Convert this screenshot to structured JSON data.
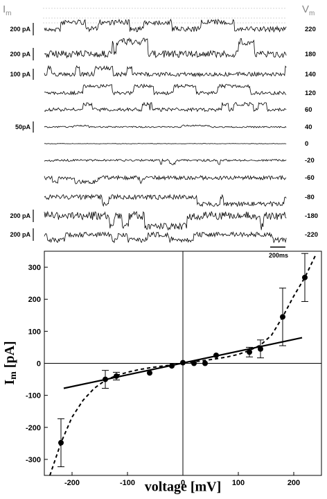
{
  "header": {
    "current_symbol": "I",
    "current_subscript": "m",
    "voltage_symbol": "V",
    "voltage_subscript": "m"
  },
  "traces": [
    {
      "scale": "200 pA",
      "voltage": "220"
    },
    {
      "scale": "200 pA",
      "voltage": "180"
    },
    {
      "scale": "100 pA",
      "voltage": "140"
    },
    {
      "scale": "",
      "voltage": "120"
    },
    {
      "scale": "",
      "voltage": "60"
    },
    {
      "scale": "50pA",
      "voltage": "40"
    },
    {
      "scale": "",
      "voltage": "0"
    },
    {
      "scale": "",
      "voltage": "-20"
    },
    {
      "scale": "",
      "voltage": "-60"
    },
    {
      "scale": "",
      "voltage": "-80"
    },
    {
      "scale": "200 pA",
      "voltage": "-180"
    },
    {
      "scale": "200 pA",
      "voltage": "-220"
    }
  ],
  "time_scale": "200ms",
  "chart_data": {
    "type": "scatter",
    "xlabel": "voltage [mV]",
    "ylabel": "I_m [pA]",
    "xlim": [
      -250,
      250
    ],
    "ylim": [
      -350,
      350
    ],
    "xticks": [
      -200,
      -100,
      0,
      100,
      200
    ],
    "yticks": [
      -300,
      -200,
      -100,
      0,
      100,
      200,
      300
    ],
    "grid": false,
    "zero_lines": true,
    "series": [
      {
        "marker": "filled-circle",
        "x": [
          -220,
          -140,
          -120,
          -60,
          -20,
          0,
          20,
          40,
          60,
          120,
          140,
          180,
          220
        ],
        "y": [
          -248,
          -50,
          -40,
          -30,
          -8,
          2,
          0,
          0,
          25,
          35,
          45,
          145,
          268
        ],
        "error_y": [
          75,
          28,
          12,
          0,
          0,
          0,
          0,
          0,
          0,
          15,
          28,
          90,
          75
        ]
      }
    ],
    "lines": [
      {
        "style": "solid",
        "x": [
          -215,
          215
        ],
        "y": [
          -78,
          80
        ]
      },
      {
        "style": "dashed",
        "x": [
          -240,
          -220,
          -200,
          -180,
          -160,
          -140,
          -120,
          -100,
          -80,
          -60,
          -40,
          -20,
          0,
          20,
          40,
          60,
          80,
          100,
          120,
          140,
          160,
          180,
          200,
          220,
          240
        ],
        "y": [
          -350,
          -248,
          -168,
          -115,
          -78,
          -53,
          -38,
          -28,
          -20,
          -14,
          -9,
          -5,
          0,
          5,
          9,
          14,
          20,
          28,
          40,
          57,
          88,
          145,
          210,
          268,
          340
        ]
      }
    ]
  }
}
